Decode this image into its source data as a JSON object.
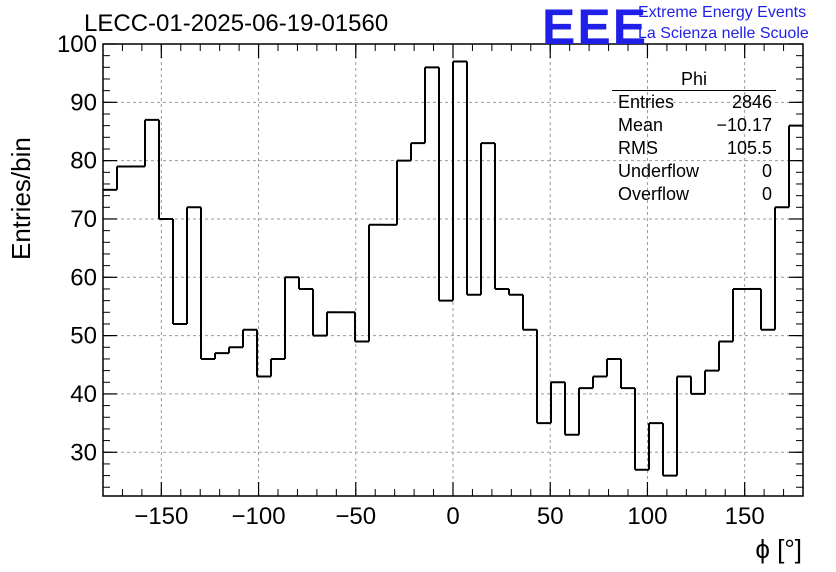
{
  "header": {
    "title": "LECC-01-2025-06-19-01560",
    "logo_text": "EEE",
    "org_line1": "Extreme Energy Events",
    "org_line2": "La Scienza nelle Scuole"
  },
  "colors": {
    "logo": "#1f1fe8",
    "histogram": "#000000",
    "grid": "#9a9a9a"
  },
  "stats_box": {
    "title": "Phi",
    "rows": [
      {
        "label": "Entries",
        "value": "2846"
      },
      {
        "label": "Mean",
        "value": "−10.17"
      },
      {
        "label": "RMS",
        "value": "105.5"
      },
      {
        "label": "Underflow",
        "value": "0"
      },
      {
        "label": "Overflow",
        "value": "0"
      }
    ]
  },
  "chart_data": {
    "type": "bar",
    "style": "step-histogram",
    "title": "LECC-01-2025-06-19-01560",
    "xlabel": "ϕ [°]",
    "ylabel": "Entries/bin",
    "xlim": [
      -180,
      180
    ],
    "ylim": [
      22.5,
      100
    ],
    "bin_width": 7.2,
    "grid": true,
    "x_ticks": [
      -150,
      -100,
      -50,
      0,
      50,
      100,
      150
    ],
    "x_tick_labels": [
      "−150",
      "−100",
      "−50",
      "0",
      "50",
      "100",
      "150"
    ],
    "y_ticks": [
      30,
      40,
      50,
      60,
      70,
      80,
      90,
      100
    ],
    "y_tick_labels": [
      "30",
      "40",
      "50",
      "60",
      "70",
      "80",
      "90",
      "100"
    ],
    "values": [
      75,
      79,
      79,
      87,
      70,
      52,
      72,
      46,
      47,
      48,
      51,
      43,
      46,
      60,
      58,
      50,
      54,
      54,
      49,
      69,
      69,
      80,
      83,
      96,
      56,
      97,
      57,
      83,
      58,
      57,
      51,
      35,
      42,
      33,
      41,
      43,
      46,
      41,
      27,
      35,
      26,
      43,
      40,
      44,
      49,
      58,
      58,
      51,
      72,
      86
    ]
  }
}
